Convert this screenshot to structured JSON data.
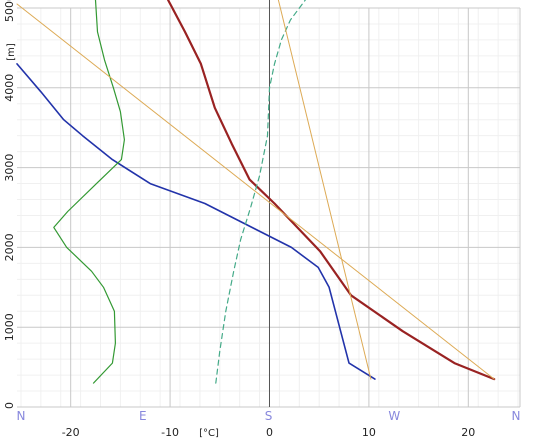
{
  "chart_data": {
    "type": "line",
    "title": "",
    "xlabel": "[°C]",
    "ylabel": "[m]",
    "xlim": [
      -25.4,
      25.2
    ],
    "ylim": [
      0,
      5000
    ],
    "grid": true,
    "x_ticks": [
      -20,
      -10,
      0,
      10,
      20
    ],
    "x_tick_labels": [
      "-20",
      "-10",
      "0",
      "10",
      "20"
    ],
    "y_ticks": [
      0,
      1000,
      2000,
      3000,
      4000,
      5000
    ],
    "y_tick_labels": [
      "0",
      "1000",
      "2000",
      "3000",
      "4000",
      "5000"
    ],
    "wind_direction_axis": {
      "labels": [
        "N",
        "E",
        "S",
        "W",
        "N"
      ],
      "positions_deg": [
        0,
        90,
        180,
        270,
        360
      ],
      "color": "#8888dd"
    },
    "series": [
      {
        "kind": "temperature",
        "color": "#992222",
        "style": "solid",
        "width": 2.2,
        "x": [
          22.6,
          18.6,
          13.4,
          8.2,
          5.1,
          2.8,
          0.5,
          -2.0,
          -3.8,
          -5.5,
          -6.9,
          -8.5,
          -10.2
        ],
        "y": [
          350,
          550,
          950,
          1400,
          1950,
          2250,
          2550,
          2850,
          3300,
          3750,
          4300,
          4700,
          5100
        ]
      },
      {
        "kind": "dew-point",
        "color": "#2233aa",
        "style": "solid",
        "width": 1.6,
        "x": [
          10.6,
          8.0,
          6.0,
          4.9,
          2.2,
          -6.5,
          -12.0,
          -15.8,
          -18.8,
          -20.7,
          -23.0,
          -25.4
        ],
        "y": [
          350,
          550,
          1500,
          1750,
          2000,
          2550,
          2800,
          3100,
          3400,
          3600,
          3950,
          4300
        ]
      },
      {
        "kind": "wind-direction",
        "color": "#339933",
        "style": "solid",
        "width": 1.2,
        "x": [
          -17.7,
          -15.8,
          -15.5,
          -15.6,
          -16.7,
          -17.9,
          -20.4,
          -21.7,
          -20.3,
          -17.4,
          -14.9,
          -14.6,
          -15.0,
          -15.7,
          -16.6,
          -17.3,
          -17.5
        ],
        "y": [
          300,
          550,
          800,
          1200,
          1500,
          1700,
          2000,
          2250,
          2450,
          2800,
          3100,
          3350,
          3700,
          4000,
          4350,
          4700,
          5100
        ]
      },
      {
        "kind": "wind-speed",
        "color": "#44aa88",
        "style": "dashed",
        "width": 1.2,
        "x": [
          -5.4,
          -5.0,
          -4.4,
          -3.6,
          -2.9,
          -1.9,
          -1.0,
          -0.2,
          0.0,
          0.5,
          1.2,
          2.1,
          3.6
        ],
        "y": [
          300,
          700,
          1200,
          1700,
          2100,
          2500,
          2900,
          3400,
          4000,
          4300,
          4600,
          4850,
          5100
        ]
      },
      {
        "kind": "dry-adiabat",
        "color": "#ddaa55",
        "style": "solid",
        "width": 1.0,
        "x": [
          22.6,
          -25.4
        ],
        "y": [
          350,
          5050
        ]
      },
      {
        "kind": "moist-adiabat",
        "color": "#ddaa55",
        "style": "solid",
        "width": 1.0,
        "x": [
          10.2,
          0.9
        ],
        "y": [
          350,
          5100
        ]
      }
    ]
  }
}
